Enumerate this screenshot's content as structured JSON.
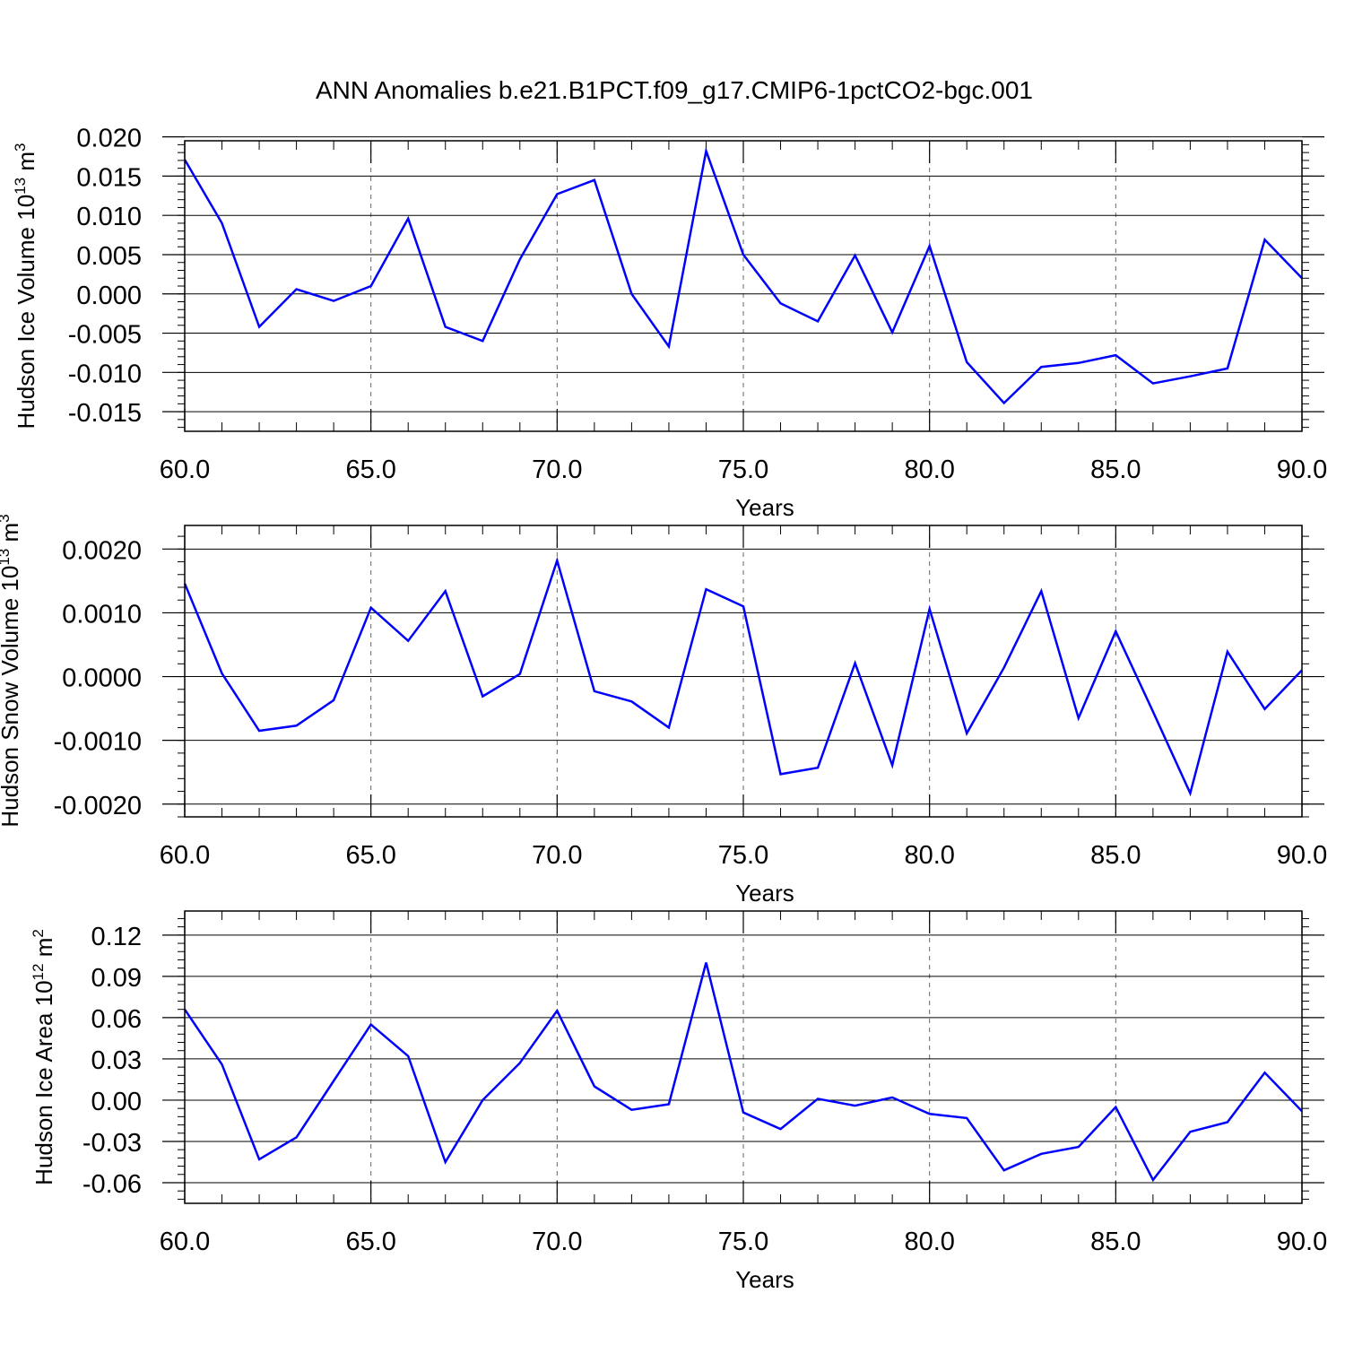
{
  "title": "ANN Anomalies b.e21.B1PCT.f09_g17.CMIP6-1pctCO2-bgc.001",
  "colors": {
    "line": "#0000ff",
    "axis": "#000000",
    "grid": "#666666"
  },
  "chart_data": [
    {
      "type": "line",
      "ylabel_main": "Hudson Ice Volume 10",
      "ylabel_exp": "13",
      "ylabel_unit": "m",
      "ylabel_unit_exp": "3",
      "xlabel": "Years",
      "xlim": [
        60,
        90
      ],
      "ylim": [
        -0.0175,
        0.0195
      ],
      "xticks": [
        60,
        65,
        70,
        75,
        80,
        85,
        90
      ],
      "xtick_labels": [
        "60.0",
        "65.0",
        "70.0",
        "75.0",
        "80.0",
        "85.0",
        "90.0"
      ],
      "yticks": [
        0.02,
        0.015,
        0.01,
        0.005,
        0.0,
        -0.005,
        -0.01,
        -0.015
      ],
      "ytick_labels": [
        "0.020",
        "0.015",
        "0.010",
        "0.005",
        "0.000",
        "-0.005",
        "-0.010",
        "-0.015"
      ],
      "x": [
        60,
        61,
        62,
        63,
        64,
        65,
        66,
        67,
        68,
        69,
        70,
        71,
        72,
        73,
        74,
        75,
        76,
        77,
        78,
        79,
        80,
        81,
        82,
        83,
        84,
        85,
        86,
        87,
        88,
        89,
        90
      ],
      "series": [
        {
          "values": [
            0.0171,
            0.009,
            -0.0042,
            0.0006,
            -0.0009,
            0.001,
            0.0096,
            -0.0042,
            -0.006,
            0.0044,
            0.0127,
            0.0145,
            0.0,
            -0.0067,
            0.0182,
            0.005,
            -0.0012,
            -0.0035,
            0.0049,
            -0.0049,
            0.0061,
            -0.0087,
            -0.0139,
            -0.0093,
            -0.0088,
            -0.0078,
            -0.0114,
            -0.0105,
            -0.0095,
            0.0069,
            0.002
          ]
        }
      ],
      "grid": "dashed vertical at major x ticks"
    },
    {
      "type": "line",
      "ylabel_main": "Hudson Snow Volume 10",
      "ylabel_exp": "13",
      "ylabel_unit": "m",
      "ylabel_unit_exp": "3",
      "xlabel": "Years",
      "xlim": [
        60,
        90
      ],
      "ylim": [
        -0.0022,
        0.00237
      ],
      "xticks": [
        60,
        65,
        70,
        75,
        80,
        85,
        90
      ],
      "xtick_labels": [
        "60.0",
        "65.0",
        "70.0",
        "75.0",
        "80.0",
        "85.0",
        "90.0"
      ],
      "yticks": [
        0.002,
        0.001,
        0.0,
        -0.001,
        -0.002
      ],
      "ytick_labels": [
        "0.0020",
        "0.0010",
        "0.0000",
        "-0.0010",
        "-0.0020"
      ],
      "x": [
        60,
        61,
        62,
        63,
        64,
        65,
        66,
        67,
        68,
        69,
        70,
        71,
        72,
        73,
        74,
        75,
        76,
        77,
        78,
        79,
        80,
        81,
        82,
        83,
        84,
        85,
        86,
        87,
        88,
        89,
        90
      ],
      "series": [
        {
          "values": [
            0.00146,
            5e-05,
            -0.00085,
            -0.00077,
            -0.00037,
            0.00108,
            0.00056,
            0.00134,
            -0.00031,
            4e-05,
            0.00182,
            -0.00023,
            -0.00039,
            -0.0008,
            0.00137,
            0.0011,
            -0.00153,
            -0.00143,
            0.00021,
            -0.00139,
            0.00106,
            -0.00089,
            0.00014,
            0.00134,
            -0.00065,
            0.00071,
            -0.00055,
            -0.00183,
            0.00039,
            -0.00051,
            0.0001
          ]
        }
      ],
      "grid": "dashed vertical at major x ticks"
    },
    {
      "type": "line",
      "ylabel_main": "Hudson Ice Area 10",
      "ylabel_exp": "12",
      "ylabel_unit": "m",
      "ylabel_unit_exp": "2",
      "xlabel": "Years",
      "xlim": [
        60,
        90
      ],
      "ylim": [
        -0.075,
        0.1375
      ],
      "xticks": [
        60,
        65,
        70,
        75,
        80,
        85,
        90
      ],
      "xtick_labels": [
        "60.0",
        "65.0",
        "70.0",
        "75.0",
        "80.0",
        "85.0",
        "90.0"
      ],
      "yticks": [
        0.12,
        0.09,
        0.06,
        0.03,
        0.0,
        -0.03,
        -0.06
      ],
      "ytick_labels": [
        "0.12",
        "0.09",
        "0.06",
        "0.03",
        "0.00",
        "-0.03",
        "-0.06"
      ],
      "x": [
        60,
        61,
        62,
        63,
        64,
        65,
        66,
        67,
        68,
        69,
        70,
        71,
        72,
        73,
        74,
        75,
        76,
        77,
        78,
        79,
        80,
        81,
        82,
        83,
        84,
        85,
        86,
        87,
        88,
        89,
        90
      ],
      "series": [
        {
          "values": [
            0.066,
            0.026,
            -0.043,
            -0.027,
            0.014,
            0.055,
            0.032,
            -0.045,
            0.0,
            0.027,
            0.065,
            0.01,
            -0.007,
            -0.003,
            0.1,
            -0.009,
            -0.021,
            0.001,
            -0.004,
            0.002,
            -0.01,
            -0.013,
            -0.051,
            -0.039,
            -0.034,
            -0.005,
            -0.058,
            -0.023,
            -0.016,
            0.02,
            -0.008
          ]
        }
      ],
      "grid": "dashed vertical at major x ticks"
    }
  ]
}
